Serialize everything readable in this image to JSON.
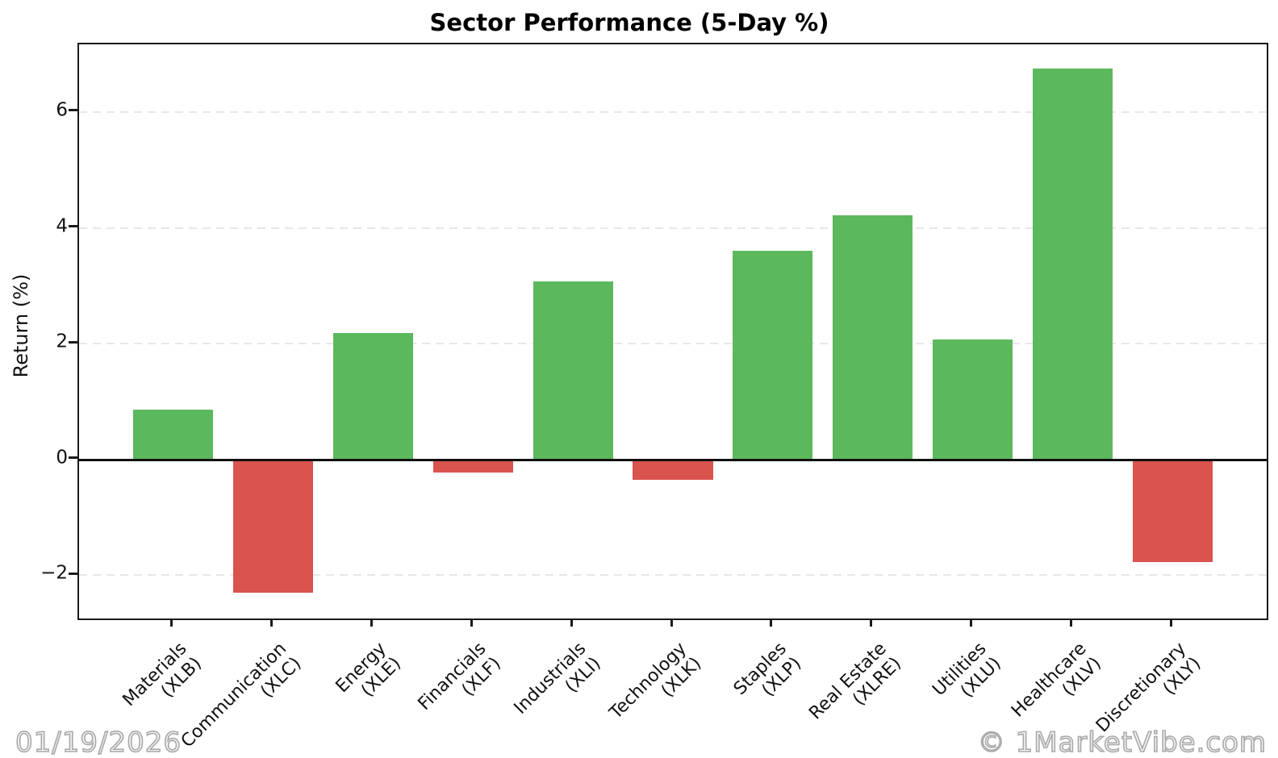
{
  "footer": {
    "date": "01/19/2026",
    "watermark": "© 1MarketVibe.com"
  },
  "colors": {
    "positive": "#5cb85c",
    "negative": "#d9534f"
  },
  "chart_data": {
    "type": "bar",
    "title": "Sector Performance (5-Day %)",
    "xlabel": "",
    "ylabel": "Return (%)",
    "categories": [
      {
        "name": "Materials",
        "ticker": "(XLB)"
      },
      {
        "name": "Communication",
        "ticker": "(XLC)"
      },
      {
        "name": "Energy",
        "ticker": "(XLE)"
      },
      {
        "name": "Financials",
        "ticker": "(XLF)"
      },
      {
        "name": "Industrials",
        "ticker": "(XLI)"
      },
      {
        "name": "Technology",
        "ticker": "(XLK)"
      },
      {
        "name": "Staples",
        "ticker": "(XLP)"
      },
      {
        "name": "Real Estate",
        "ticker": "(XLRE)"
      },
      {
        "name": "Utilities",
        "ticker": "(XLU)"
      },
      {
        "name": "Healthcare",
        "ticker": "(XLV)"
      },
      {
        "name": "Discretionary",
        "ticker": "(XLY)"
      }
    ],
    "values": [
      0.86,
      -2.31,
      2.18,
      -0.23,
      3.07,
      -0.36,
      3.6,
      4.21,
      2.07,
      6.75,
      -1.77
    ],
    "yticks": [
      -2,
      0,
      2,
      4,
      6
    ],
    "ylim": [
      -2.75,
      7.17
    ],
    "grid": true,
    "legend": false,
    "zero_line": true,
    "bar_width": 0.8,
    "x_pad": 0.94
  }
}
